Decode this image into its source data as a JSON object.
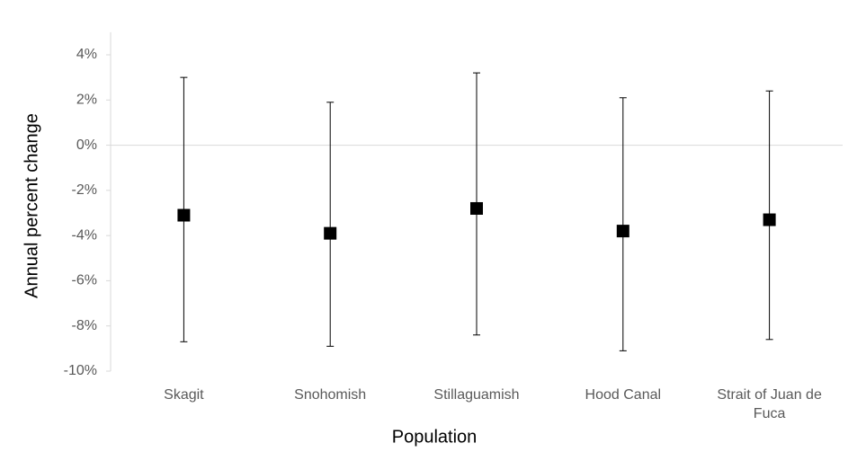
{
  "chart_data": {
    "type": "errorbar",
    "x_label": "Population",
    "y_label": "Annual percent change",
    "categories": [
      "Skagit",
      "Snohomish",
      "Stillaguamish",
      "Hood Canal",
      "Strait of Juan de Fuca"
    ],
    "series": [
      {
        "color": "#000000",
        "values": [
          -3.1,
          -3.9,
          -2.8,
          -3.8,
          -3.3
        ],
        "high": [
          3.0,
          1.9,
          3.2,
          2.1,
          2.4
        ],
        "low": [
          -8.7,
          -8.9,
          -8.4,
          -9.1,
          -8.6
        ]
      }
    ],
    "ylim": [
      -10,
      5
    ],
    "yticks": [
      {
        "value": -10,
        "label": "-10%"
      },
      {
        "value": -8,
        "label": "-8%"
      },
      {
        "value": -6,
        "label": "-6%"
      },
      {
        "value": -4,
        "label": "-4%"
      },
      {
        "value": -2,
        "label": "-2%"
      },
      {
        "value": 0,
        "label": "0%"
      },
      {
        "value": 2,
        "label": "2%"
      },
      {
        "value": 4,
        "label": "4%"
      }
    ],
    "grid": false
  }
}
